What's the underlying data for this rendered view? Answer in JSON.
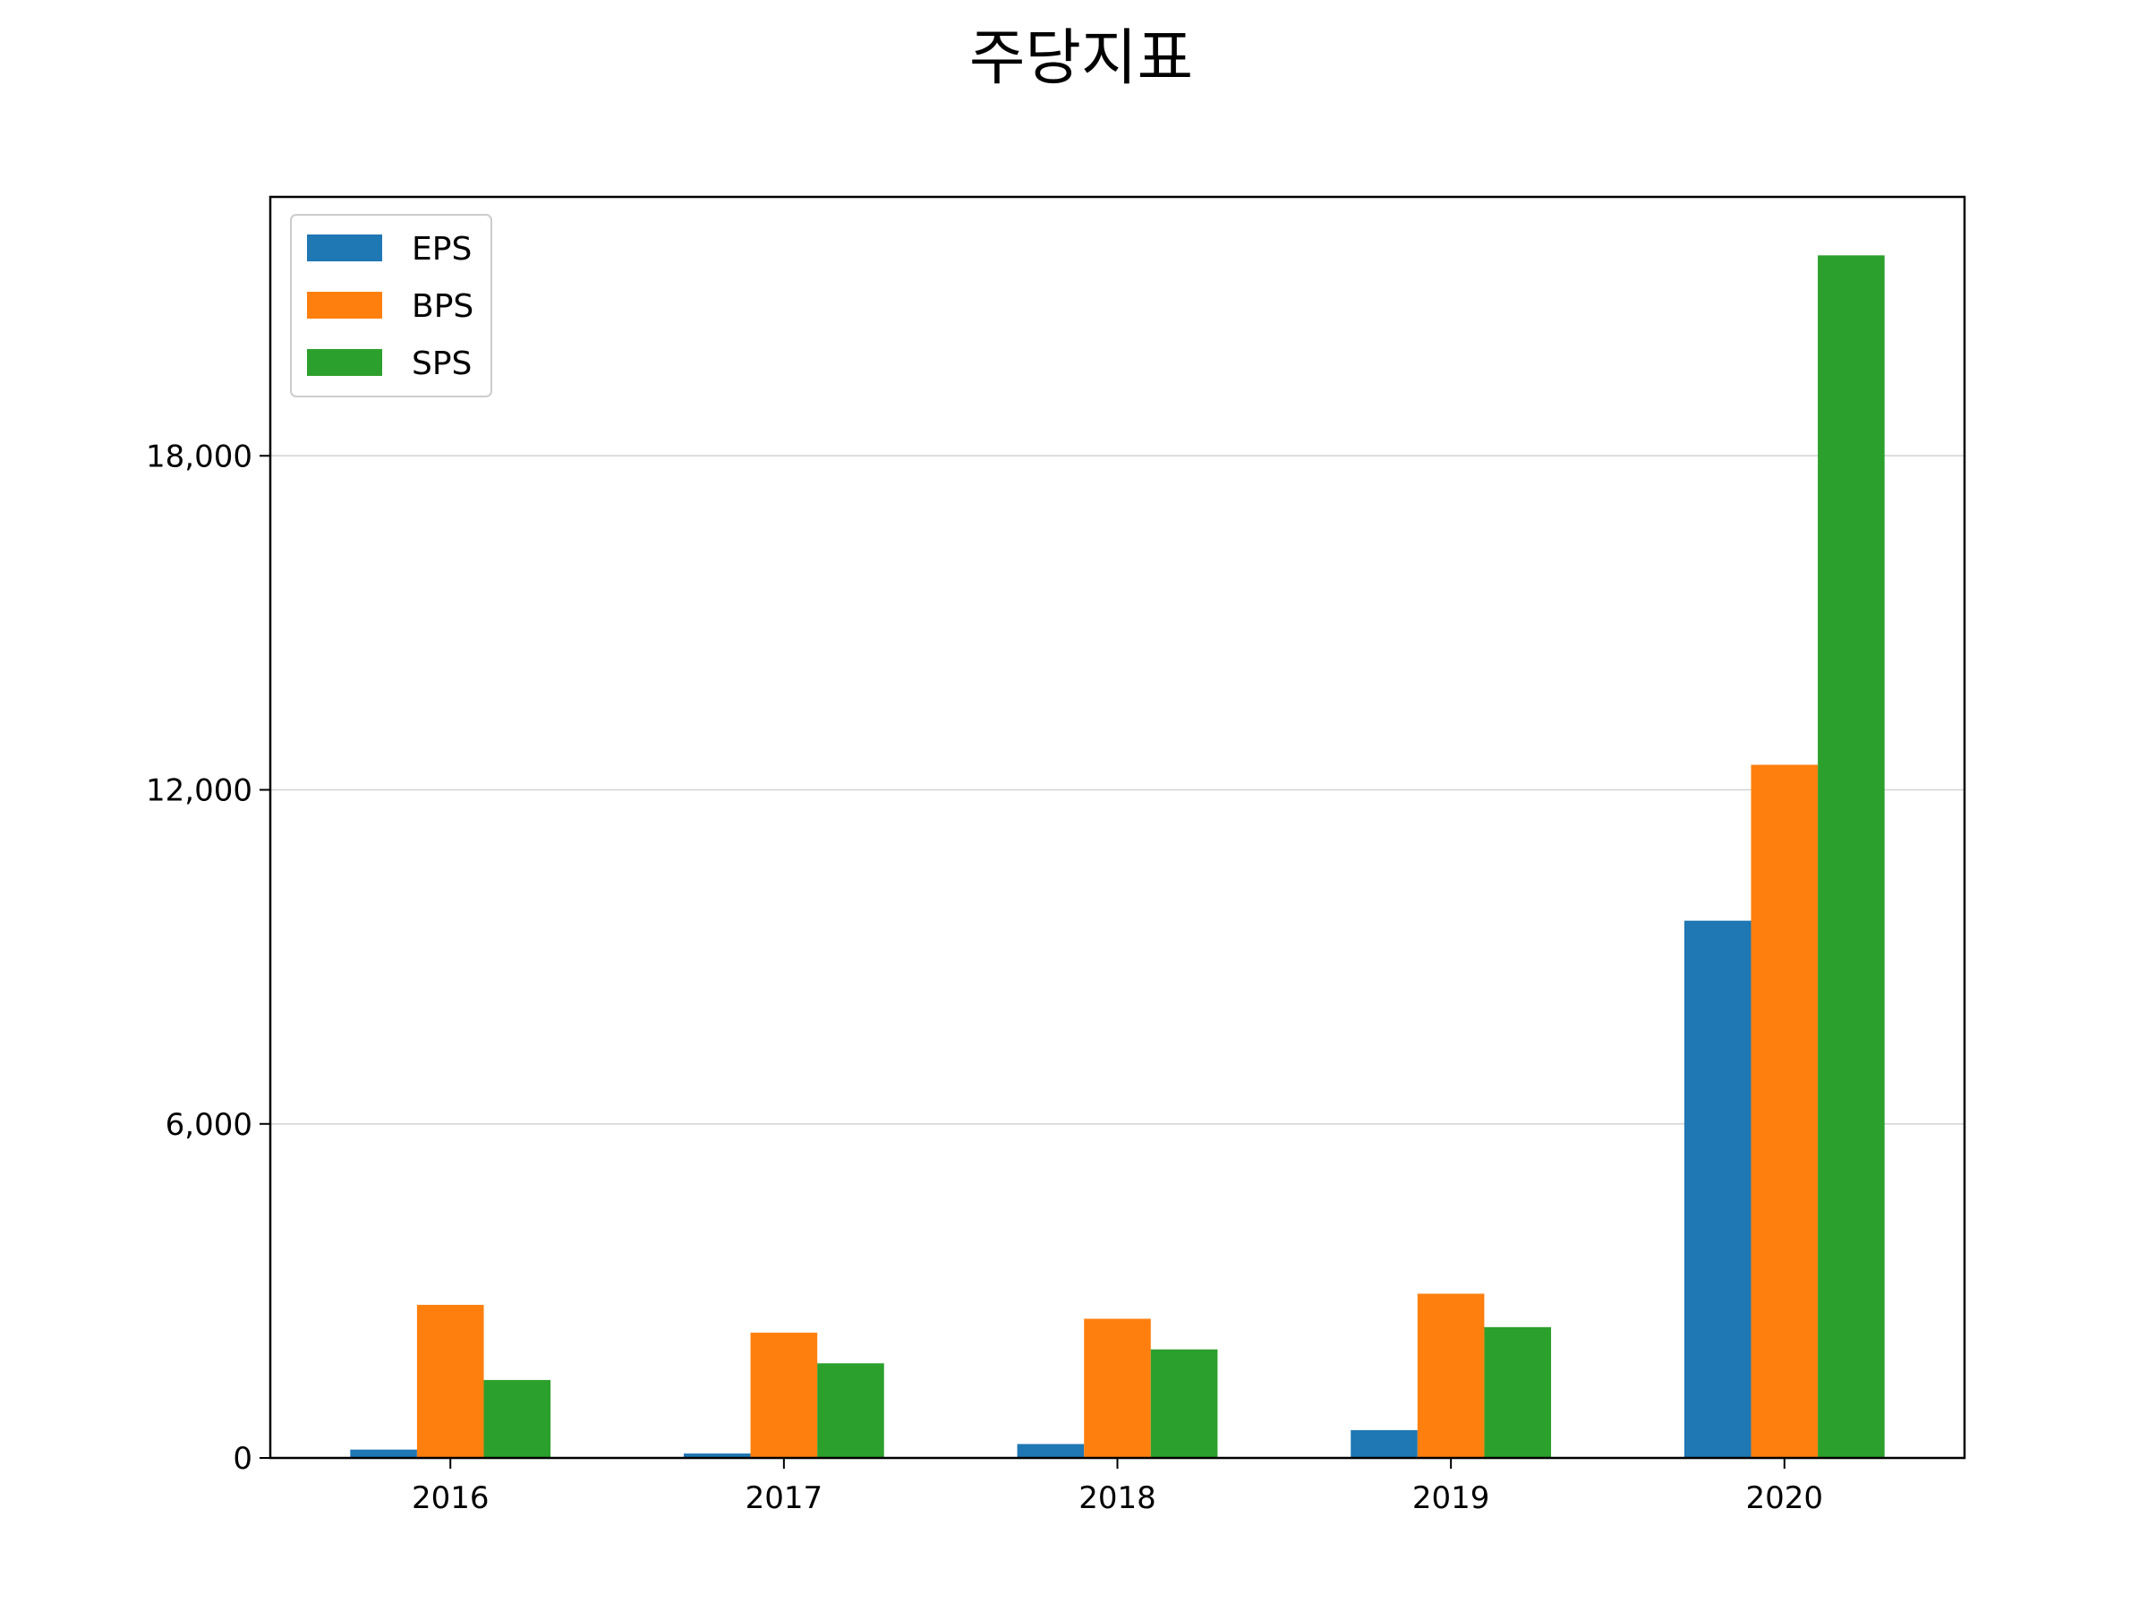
{
  "chart_data": {
    "type": "bar",
    "title": "주당지표",
    "xlabel": "",
    "ylabel": "",
    "categories": [
      "2016",
      "2017",
      "2018",
      "2019",
      "2020"
    ],
    "series": [
      {
        "name": "EPS",
        "color": "#1f77b4",
        "values": [
          150,
          80,
          250,
          500,
          9650
        ]
      },
      {
        "name": "BPS",
        "color": "#ff7f0e",
        "values": [
          2750,
          2250,
          2500,
          2950,
          12450
        ]
      },
      {
        "name": "SPS",
        "color": "#2ca02c",
        "values": [
          1400,
          1700,
          1950,
          2350,
          21600
        ]
      }
    ],
    "ylim": [
      0,
      22650
    ],
    "yticks": [
      0,
      6000,
      12000,
      18000
    ],
    "ytick_labels": [
      "0",
      "6,000",
      "12,000",
      "18,000"
    ],
    "grid": "y",
    "legend_position": "top-left"
  }
}
